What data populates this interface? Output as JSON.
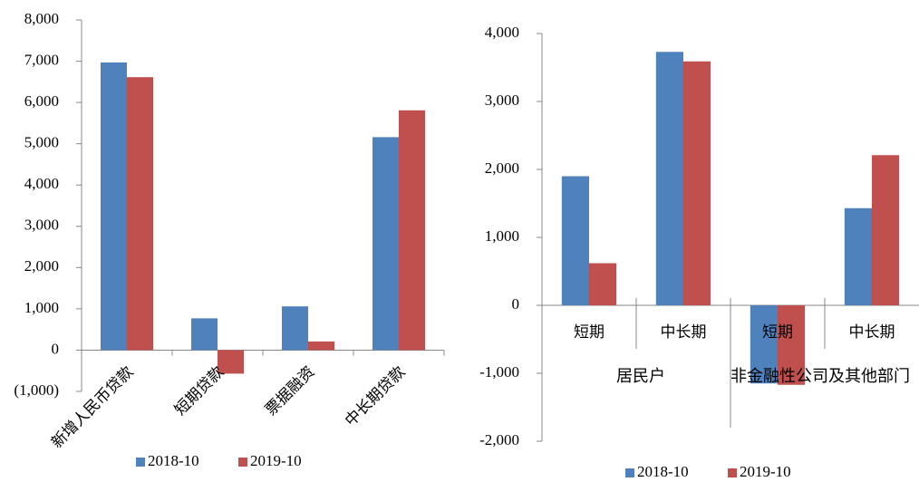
{
  "chart_data": [
    {
      "type": "bar",
      "categories": [
        "新增人民币贷款",
        "短期贷款",
        "票据融资",
        "中长期贷款"
      ],
      "series": [
        {
          "name": "2018-10",
          "color": "#4f81bd",
          "values": [
            6970,
            770,
            1060,
            5160
          ]
        },
        {
          "name": "2019-10",
          "color": "#c0504d",
          "values": [
            6613,
            -570,
            210,
            5810
          ]
        }
      ],
      "ylim": [
        -1000,
        8000
      ],
      "yticks": [
        {
          "value": -1000,
          "label": "(1,000)"
        },
        0,
        {
          "value": 1000,
          "label": "1,000"
        },
        {
          "value": 2000,
          "label": "2,000"
        },
        {
          "value": 3000,
          "label": "3,000"
        },
        {
          "value": 4000,
          "label": "4,000"
        },
        {
          "value": 5000,
          "label": "5,000"
        },
        {
          "value": 6000,
          "label": "6,000"
        },
        {
          "value": 7000,
          "label": "7,000"
        },
        {
          "value": 8000,
          "label": "8,000"
        }
      ],
      "negative_label_color": "#ff0000",
      "legend": "bottom"
    },
    {
      "type": "bar",
      "categories": [
        "短期",
        "中长期",
        "短期",
        "中长期"
      ],
      "groups": [
        "居民户",
        "非金融性公司及其他部门"
      ],
      "series": [
        {
          "name": "2018-10",
          "color": "#4f81bd",
          "values": [
            1900,
            3730,
            -1150,
            1430
          ]
        },
        {
          "name": "2019-10",
          "color": "#c0504d",
          "values": [
            620,
            3590,
            -1170,
            2210
          ]
        }
      ],
      "ylim": [
        -2000,
        4000
      ],
      "yticks": [
        {
          "value": -2000,
          "label": "-2,000"
        },
        {
          "value": -1000,
          "label": "-1,000"
        },
        0,
        {
          "value": 1000,
          "label": "1,000"
        },
        {
          "value": 2000,
          "label": "2,000"
        },
        {
          "value": 3000,
          "label": "3,000"
        },
        {
          "value": 4000,
          "label": "4,000"
        }
      ],
      "legend": "bottom"
    }
  ]
}
